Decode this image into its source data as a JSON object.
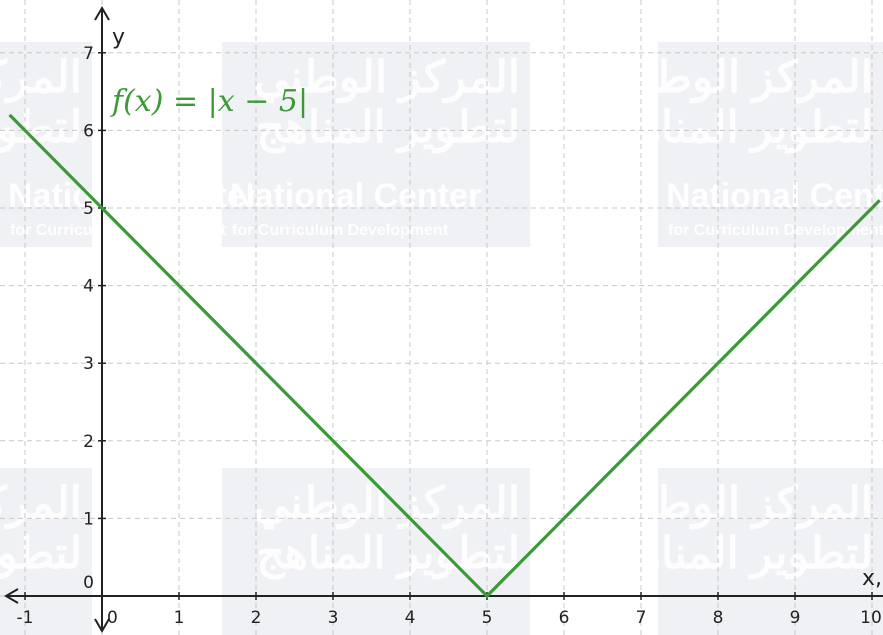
{
  "chart_data": {
    "type": "line",
    "title": "",
    "xlabel": "x",
    "ylabel": "y",
    "xlim": [
      -1.2,
      10.1
    ],
    "ylim": [
      -0.4,
      7.6
    ],
    "x_ticks": [
      -1,
      0,
      1,
      2,
      3,
      4,
      5,
      6,
      7,
      8,
      9,
      10
    ],
    "y_ticks": [
      0,
      1,
      2,
      3,
      4,
      5,
      6,
      7
    ],
    "x_tick_labels": [
      "-1",
      "0",
      "1",
      "2",
      "3",
      "4",
      "5",
      "6",
      "7",
      "8",
      "9",
      "10"
    ],
    "y_tick_labels": [
      "0",
      "1",
      "2",
      "3",
      "4",
      "5",
      "6",
      "7"
    ],
    "grid": true,
    "series": [
      {
        "name": "f(x) = |x − 5|",
        "color": "#3a9b35",
        "x": [
          -1.2,
          5,
          10.1
        ],
        "y": [
          6.2,
          0,
          5.1
        ]
      }
    ],
    "annotations": [
      {
        "text": "f(x)  =  |x − 5|",
        "color": "#3a9b35"
      }
    ],
    "watermark": {
      "arabic_lines": [
        "المركز الوطني",
        "لتطوير المناهج"
      ],
      "english_title": "National Center",
      "english_subtitle": "for Curriculum Development"
    }
  }
}
